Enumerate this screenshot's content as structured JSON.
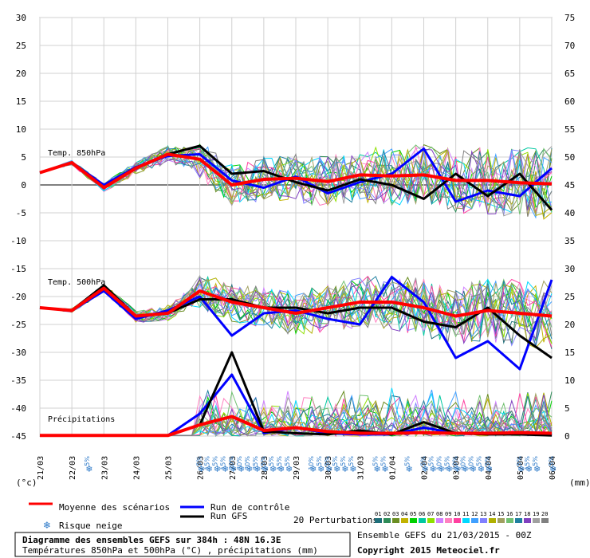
{
  "chart_data": {
    "type": "line",
    "dates": [
      "21/03",
      "22/03",
      "23/03",
      "24/03",
      "25/03",
      "26/03",
      "27/03",
      "28/03",
      "29/03",
      "30/03",
      "31/03",
      "01/04",
      "02/04",
      "03/04",
      "04/04",
      "05/04",
      "06/04"
    ],
    "left_ticks": [
      30,
      25,
      20,
      15,
      10,
      5,
      0,
      -5,
      -10,
      -15,
      -20,
      -25,
      -30,
      -35,
      -40,
      -45
    ],
    "right_ticks": [
      75,
      70,
      65,
      60,
      55,
      50,
      45,
      40,
      35,
      30,
      25,
      20,
      15,
      10,
      5,
      0
    ],
    "left_unit": "(°c)",
    "right_unit": "(mm)",
    "panel_labels": {
      "t850": "Temp. 850hPa",
      "t500": "Temp. 500hPa",
      "precip": "Précipitations"
    },
    "series": [
      {
        "name": "Moyenne des scénarios",
        "color": "#ff0000",
        "t850": [
          2.2,
          4.0,
          -0.5,
          3.0,
          5.5,
          4.6,
          0.0,
          1.0,
          1.2,
          0.6,
          1.8,
          1.6,
          1.8,
          0.8,
          0.8,
          0.4,
          0.2
        ],
        "t500": [
          -22.0,
          -22.5,
          -18.5,
          -23.5,
          -23.0,
          -19.0,
          -21.0,
          -22.0,
          -23.0,
          -22.0,
          -21.0,
          -21.0,
          -22.0,
          -23.5,
          -22.5,
          -23.0,
          -23.5
        ],
        "precip": [
          0.1,
          0.1,
          0.1,
          0.1,
          0.1,
          2.0,
          3.5,
          1.0,
          1.5,
          0.8,
          0.5,
          0.5,
          0.6,
          0.5,
          0.5,
          0.6,
          0.5
        ]
      },
      {
        "name": "Run de contrôle",
        "color": "#0000ff",
        "t850": [
          2.2,
          4.0,
          0.0,
          3.2,
          5.2,
          5.5,
          0.8,
          -0.5,
          1.5,
          -1.5,
          0.5,
          2.0,
          6.5,
          -3.0,
          -1.0,
          -2.0,
          3.0
        ],
        "t500": [
          -22.0,
          -22.5,
          -19.0,
          -24.0,
          -22.5,
          -20.0,
          -27.0,
          -23.0,
          -22.5,
          -24.0,
          -25.0,
          -16.5,
          -21.0,
          -31.0,
          -28.0,
          -33.0,
          -17.0
        ],
        "precip": [
          0.1,
          0.1,
          0.1,
          0.1,
          0.1,
          4.0,
          11.0,
          0.5,
          1.5,
          0.5,
          0.3,
          0.3,
          1.5,
          0.5,
          0.5,
          0.5,
          0.2
        ]
      },
      {
        "name": "Run GFS",
        "color": "#000000",
        "t850": [
          2.2,
          4.0,
          -0.5,
          3.0,
          5.5,
          7.0,
          2.0,
          2.5,
          0.5,
          -1.0,
          1.0,
          0.0,
          -2.5,
          2.0,
          -2.0,
          2.0,
          -4.5
        ],
        "t500": [
          -22.0,
          -22.5,
          -18.0,
          -23.5,
          -23.0,
          -20.5,
          -20.5,
          -22.0,
          -22.0,
          -23.0,
          -22.0,
          -22.0,
          -24.5,
          -25.5,
          -22.0,
          -27.0,
          -31.0
        ],
        "precip": [
          0.1,
          0.1,
          0.1,
          0.1,
          0.1,
          2.0,
          15.0,
          0.8,
          0.5,
          0.3,
          1.0,
          0.3,
          2.5,
          0.5,
          0.3,
          0.3,
          0.1
        ]
      }
    ],
    "precip_peaks_mm": [
      0,
      0,
      0,
      0,
      0,
      13,
      16,
      10,
      4,
      14,
      13,
      5,
      6,
      4,
      5,
      4,
      3
    ],
    "snow_risk_pct": [
      [
        "22/03 12h",
        "5%"
      ],
      [
        "26/03 00h",
        "5%"
      ],
      [
        "26/03 06h",
        "15%"
      ],
      [
        "26/03 12h",
        "5%"
      ],
      [
        "26/03 18h",
        "15%"
      ],
      [
        "27/03 00h",
        "20%"
      ],
      [
        "27/03 06h",
        "30%"
      ],
      [
        "27/03 12h",
        "20%"
      ],
      [
        "27/03 18h",
        "25%"
      ],
      [
        "28/03 00h",
        "15%"
      ],
      [
        "28/03 06h",
        "5%"
      ],
      [
        "28/03 12h",
        "15%"
      ],
      [
        "28/03 18h",
        "5%"
      ],
      [
        "29/03 12h",
        "10%"
      ],
      [
        "29/03 18h",
        "5%"
      ],
      [
        "30/03 00h",
        "5%"
      ],
      [
        "30/03 06h",
        "5%"
      ],
      [
        "30/03 12h",
        "5%"
      ],
      [
        "30/03 18h",
        "5%"
      ],
      [
        "31/03 12h",
        "5%"
      ],
      [
        "31/03 18h",
        "5%"
      ],
      [
        "01/04 12h",
        "5%"
      ],
      [
        "02/04 00h",
        "5%"
      ],
      [
        "02/04 06h",
        "5%"
      ],
      [
        "02/04 12h",
        "10%"
      ],
      [
        "02/04 18h",
        "15%"
      ],
      [
        "03/04 00h",
        "10%"
      ],
      [
        "03/04 06h",
        "20%"
      ],
      [
        "03/04 12h",
        "10%"
      ],
      [
        "03/04 18h",
        "5%"
      ],
      [
        "04/04 00h",
        "5%"
      ],
      [
        "05/04 00h",
        "5%"
      ],
      [
        "05/04 06h",
        "15%"
      ],
      [
        "05/04 12h",
        "5%"
      ],
      [
        "06/04 00h",
        "5%"
      ]
    ],
    "perturbations_label": "20 Perturbations",
    "perturbation_ids": [
      "01",
      "02",
      "03",
      "04",
      "05",
      "06",
      "07",
      "08",
      "09",
      "10",
      "11",
      "12",
      "13",
      "14",
      "15",
      "16",
      "17",
      "18",
      "19",
      "20"
    ],
    "perturbation_colors": [
      "#1f6f7a",
      "#2e8b57",
      "#6b8e23",
      "#c2b200",
      "#00d000",
      "#00c8a0",
      "#8fe000",
      "#d080ff",
      "#ff80c0",
      "#ff40a0",
      "#00d8ff",
      "#40a0ff",
      "#8080ff",
      "#b0b000",
      "#a0a060",
      "#70c070",
      "#2080a0",
      "#8040c0",
      "#a0a0a0",
      "#808080"
    ],
    "gridlines": true
  },
  "legend": {
    "mean": "Moyenne des scénarios",
    "control": "Run de contrôle",
    "gfs": "Run GFS",
    "snow": "Risque neige"
  },
  "footer": {
    "title": "Diagramme des ensembles GEFS sur 384h : 48N 16.3E",
    "subtitle": "Températures 850hPa et 500hPa (°C) , précipitations (mm)",
    "ensemble": "Ensemble GEFS du 21/03/2015 - 00Z",
    "copyright": "Copyright 2015 Meteociel.fr"
  },
  "colors": {
    "mean": "#ff0000",
    "control": "#0000ff",
    "gfs": "#000000",
    "grid": "#d0d0d0",
    "snow": "#2a78c8"
  }
}
